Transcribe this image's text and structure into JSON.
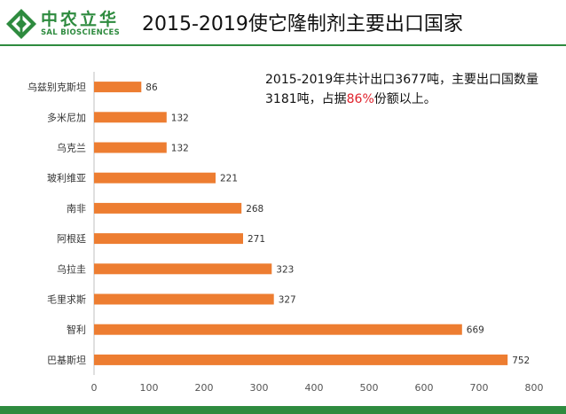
{
  "brand": {
    "name_cn": "中农立华",
    "name_en": "SAL BIOSCIENCES",
    "color": "#2e8b3f"
  },
  "chart_data": {
    "type": "bar",
    "orientation": "horizontal",
    "title": "2015-2019使它隆制剂主要出口国家",
    "categories": [
      "巴基斯坦",
      "智利",
      "毛里求斯",
      "乌拉圭",
      "阿根廷",
      "南非",
      "玻利维亚",
      "乌克兰",
      "多米尼加",
      "乌兹别克斯坦"
    ],
    "values": [
      752,
      669,
      327,
      323,
      271,
      268,
      221,
      132,
      132,
      86
    ],
    "xlim": [
      0,
      800
    ],
    "xticks": [
      0,
      100,
      200,
      300,
      400,
      500,
      600,
      700,
      800
    ],
    "bar_color": "#ed7d31",
    "grid": false,
    "annotation": {
      "part1": "2015-2019年共计出口3677吨，主要出口国数量3181吨，占据",
      "highlight": "86%",
      "part2": "份额以上。",
      "highlight_color": "#e0212b"
    }
  }
}
